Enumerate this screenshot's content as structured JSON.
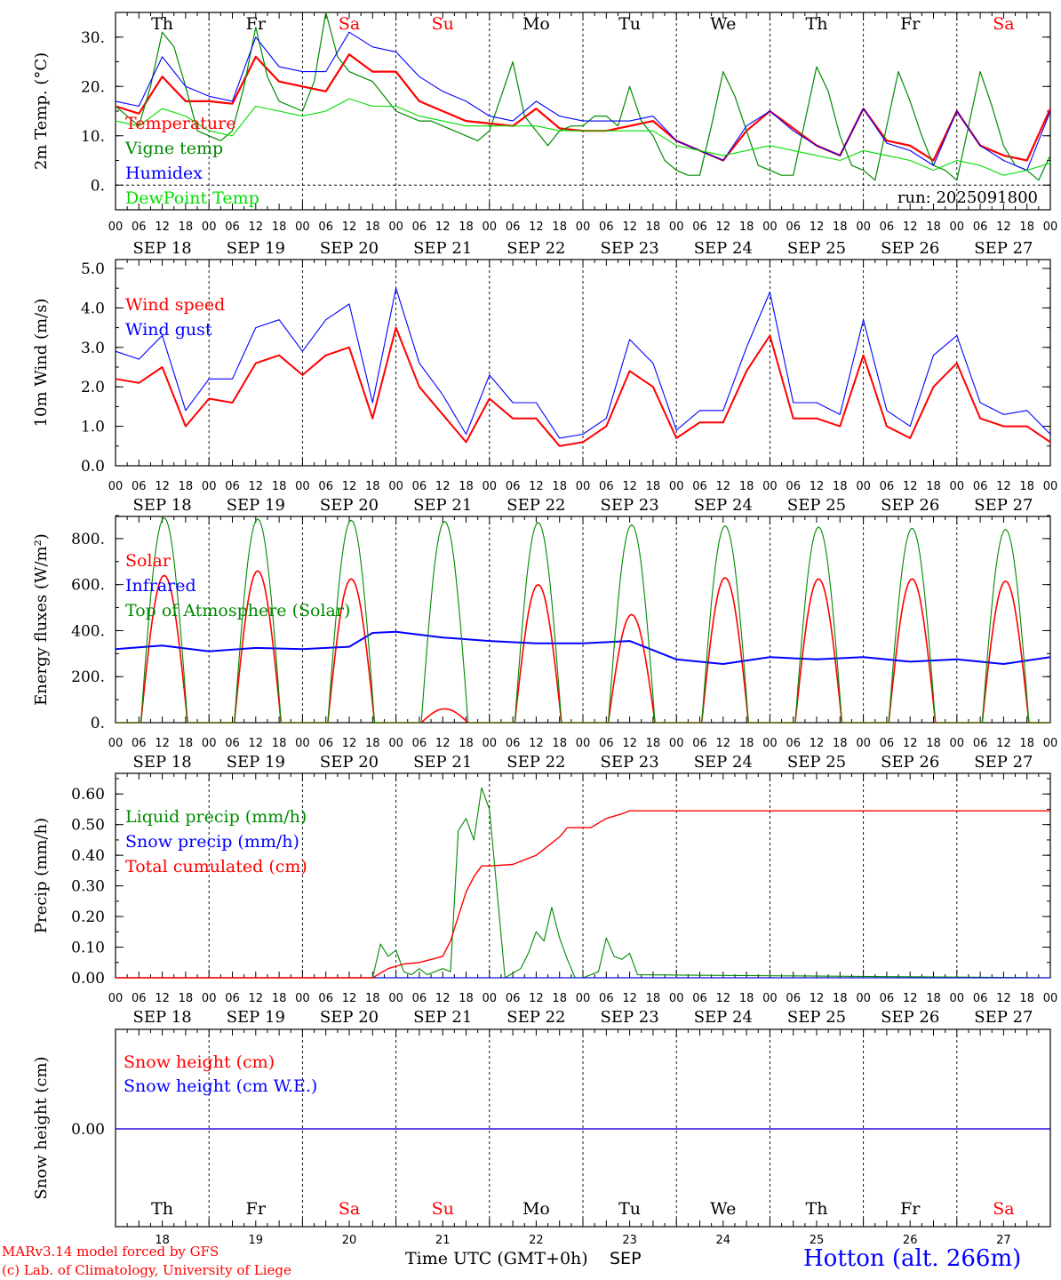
{
  "colors": {
    "red": "#ff0000",
    "green": "#008a00",
    "blue": "#0000ff",
    "lime": "#00dd00",
    "weekend": "#ff0000",
    "black": "#000000"
  },
  "days": [
    {
      "abbr": "Th",
      "date": "SEP 18",
      "num": "18",
      "weekend": false
    },
    {
      "abbr": "Fr",
      "date": "SEP 19",
      "num": "19",
      "weekend": false
    },
    {
      "abbr": "Sa",
      "date": "SEP 20",
      "num": "20",
      "weekend": true
    },
    {
      "abbr": "Su",
      "date": "SEP 21",
      "num": "21",
      "weekend": true
    },
    {
      "abbr": "Mo",
      "date": "SEP 22",
      "num": "22",
      "weekend": false
    },
    {
      "abbr": "Tu",
      "date": "SEP 23",
      "num": "23",
      "weekend": false
    },
    {
      "abbr": "We",
      "date": "SEP 24",
      "num": "24",
      "weekend": false
    },
    {
      "abbr": "Th",
      "date": "SEP 25",
      "num": "25",
      "weekend": false
    },
    {
      "abbr": "Fr",
      "date": "SEP 26",
      "num": "26",
      "weekend": false
    },
    {
      "abbr": "Sa",
      "date": "SEP 27",
      "num": "27",
      "weekend": true
    }
  ],
  "hour_labels": [
    "00",
    "06",
    "12",
    "18"
  ],
  "footer": {
    "model": "MARv3.14 model forced by GFS",
    "lab": "(c) Lab. of Climatology, University of Liege",
    "xlabel": "Time UTC (GMT+0h)",
    "month": "SEP",
    "location": "Hotton (alt. 266m)"
  },
  "chart_data": [
    {
      "type": "line",
      "id": "temperature",
      "ylabel": "2m Temp. (°C)",
      "ylim": [
        -5,
        35
      ],
      "yticks": [
        0,
        10,
        20,
        30
      ],
      "ytick_labels": [
        "0.",
        "10.",
        "20.",
        "30."
      ],
      "zero_line": 0,
      "annotation": "run: 2025091800",
      "x_unit": "hours since SEP 18 00 UTC",
      "series": [
        {
          "name": "Temperature",
          "color": "#ff0000",
          "width": 2.2,
          "x": [
            0,
            6,
            12,
            18,
            24,
            30,
            36,
            42,
            48,
            54,
            60,
            66,
            72,
            78,
            84,
            90,
            96,
            102,
            108,
            114,
            120,
            126,
            132,
            138,
            144,
            150,
            156,
            162,
            168,
            174,
            180,
            186,
            192,
            198,
            204,
            210,
            216,
            222,
            228,
            234,
            240
          ],
          "y": [
            16,
            14.5,
            22,
            17,
            17,
            16.5,
            26,
            21,
            20,
            19,
            26.5,
            23,
            23,
            17,
            15,
            13,
            12.5,
            12,
            15.5,
            11.5,
            11,
            11,
            12,
            13,
            9,
            7,
            5,
            11,
            15,
            11.5,
            8,
            6,
            15.5,
            9,
            8,
            5,
            15,
            8,
            6,
            5,
            15.5
          ]
        },
        {
          "name": "Vigne temp",
          "color": "#008a00",
          "width": 1.2,
          "x": [
            0,
            3,
            6,
            9,
            12,
            15,
            18,
            21,
            24,
            27,
            30,
            33,
            36,
            39,
            42,
            45,
            48,
            51,
            54,
            57,
            60,
            63,
            66,
            69,
            72,
            75,
            78,
            81,
            84,
            87,
            90,
            93,
            96,
            99,
            102,
            105,
            108,
            111,
            114,
            117,
            120,
            123,
            126,
            129,
            132,
            135,
            138,
            141,
            144,
            147,
            150,
            153,
            156,
            159,
            162,
            165,
            168,
            171,
            174,
            177,
            180,
            183,
            186,
            189,
            192,
            195,
            198,
            201,
            204,
            207,
            210,
            213,
            216,
            219,
            222,
            225,
            228,
            231,
            234,
            237,
            240
          ],
          "y": [
            16,
            14,
            12,
            20,
            31,
            28,
            20,
            11,
            10,
            9,
            11,
            20,
            32,
            22,
            17,
            16,
            15,
            21,
            35,
            26,
            23,
            22,
            21,
            18,
            15,
            14,
            13,
            13,
            12,
            11,
            10,
            9,
            11,
            18,
            25,
            14,
            11,
            8,
            11,
            12,
            12,
            14,
            14,
            12,
            20,
            13,
            10,
            5,
            3,
            2,
            2,
            12,
            23,
            18,
            11,
            4,
            3,
            2,
            2,
            13,
            24,
            19,
            10,
            4,
            3,
            1,
            12,
            23,
            17,
            10,
            4,
            3,
            1,
            12,
            23,
            16,
            8,
            4,
            3,
            1,
            6
          ]
        },
        {
          "name": "Humidex",
          "color": "#0000ff",
          "width": 1.1,
          "x": [
            0,
            6,
            12,
            18,
            24,
            30,
            36,
            42,
            48,
            54,
            60,
            66,
            72,
            78,
            84,
            90,
            96,
            102,
            108,
            114,
            120,
            126,
            132,
            138,
            144,
            150,
            156,
            162,
            168,
            174,
            180,
            186,
            192,
            198,
            204,
            210,
            216,
            222,
            228,
            234,
            240
          ],
          "y": [
            17,
            16,
            26,
            20,
            18,
            17,
            30,
            24,
            23,
            23,
            31,
            28,
            27,
            22,
            19,
            17,
            14,
            13,
            17,
            14,
            13,
            13,
            13,
            14,
            9,
            7,
            5,
            12,
            15,
            11,
            8,
            6,
            15.5,
            8.5,
            7,
            4,
            15,
            8,
            5,
            3,
            15
          ]
        },
        {
          "name": "DewPoint Temp",
          "color": "#00dd00",
          "width": 1.1,
          "x": [
            0,
            6,
            12,
            18,
            24,
            30,
            36,
            42,
            48,
            54,
            60,
            66,
            72,
            78,
            84,
            90,
            96,
            102,
            108,
            114,
            120,
            126,
            132,
            138,
            144,
            150,
            156,
            162,
            168,
            174,
            180,
            186,
            192,
            198,
            204,
            210,
            216,
            222,
            228,
            234,
            240
          ],
          "y": [
            13,
            12,
            15.5,
            14,
            11,
            10,
            16,
            15,
            14,
            15,
            17.5,
            16,
            16,
            14,
            13,
            12,
            12,
            12,
            12,
            11,
            11,
            11,
            11,
            11,
            8,
            7,
            6,
            7,
            8,
            7,
            6,
            5,
            7,
            6,
            5,
            3,
            5,
            4,
            2,
            3,
            4.5
          ]
        }
      ]
    },
    {
      "type": "line",
      "id": "wind",
      "ylabel": "10m Wind (m/s)",
      "ylim": [
        0,
        5
      ],
      "yticks": [
        0,
        1,
        2,
        3,
        4,
        5
      ],
      "ytick_labels": [
        "0.0",
        "1.0",
        "2.0",
        "3.0",
        "4.0",
        "5.0"
      ],
      "x_unit": "hours since SEP 18 00 UTC",
      "series": [
        {
          "name": "Wind speed",
          "color": "#ff0000",
          "width": 2.0,
          "x": [
            0,
            6,
            12,
            18,
            24,
            30,
            36,
            42,
            48,
            54,
            60,
            66,
            72,
            78,
            84,
            90,
            96,
            102,
            108,
            114,
            120,
            126,
            132,
            138,
            144,
            150,
            156,
            162,
            168,
            174,
            180,
            186,
            192,
            198,
            204,
            210,
            216,
            222,
            228,
            234,
            240
          ],
          "y": [
            2.2,
            2.1,
            2.5,
            1.0,
            1.7,
            1.6,
            2.6,
            2.8,
            2.3,
            2.8,
            3.0,
            1.2,
            3.5,
            2.0,
            1.3,
            0.6,
            1.7,
            1.2,
            1.2,
            0.5,
            0.6,
            1.0,
            2.4,
            2.0,
            0.7,
            1.1,
            1.1,
            2.4,
            3.3,
            1.2,
            1.2,
            1.0,
            2.8,
            1.0,
            0.7,
            2.0,
            2.6,
            1.2,
            1.0,
            1.0,
            0.6
          ]
        },
        {
          "name": "Wind gust",
          "color": "#0000ff",
          "width": 1.1,
          "x": [
            0,
            6,
            12,
            18,
            24,
            30,
            36,
            42,
            48,
            54,
            60,
            66,
            72,
            78,
            84,
            90,
            96,
            102,
            108,
            114,
            120,
            126,
            132,
            138,
            144,
            150,
            156,
            162,
            168,
            174,
            180,
            186,
            192,
            198,
            204,
            210,
            216,
            222,
            228,
            234,
            240
          ],
          "y": [
            2.9,
            2.7,
            3.3,
            1.4,
            2.2,
            2.2,
            3.5,
            3.7,
            2.9,
            3.7,
            4.1,
            1.6,
            4.5,
            2.6,
            1.8,
            0.8,
            2.3,
            1.6,
            1.6,
            0.7,
            0.8,
            1.2,
            3.2,
            2.6,
            0.9,
            1.4,
            1.4,
            3.0,
            4.4,
            1.6,
            1.6,
            1.3,
            3.7,
            1.4,
            1.0,
            2.8,
            3.3,
            1.6,
            1.3,
            1.4,
            0.8
          ]
        }
      ]
    },
    {
      "type": "line",
      "id": "energy",
      "ylabel": "Energy fluxes (W/m²)",
      "ylim": [
        0,
        900
      ],
      "yticks": [
        0,
        200,
        400,
        600,
        800
      ],
      "ytick_labels": [
        "0.",
        "200.",
        "400.",
        "600.",
        "800."
      ],
      "x_unit": "hours since SEP 18 00 UTC",
      "series": [
        {
          "name": "Solar",
          "color": "#ff0000",
          "width": 1.6,
          "kind": "daily_peaks",
          "peaks": [
            640,
            660,
            625,
            60,
            600,
            470,
            630,
            625,
            625,
            615
          ]
        },
        {
          "name": "Infrared",
          "color": "#0000ff",
          "width": 2.0,
          "x": [
            0,
            12,
            24,
            36,
            48,
            60,
            66,
            72,
            84,
            96,
            108,
            120,
            132,
            144,
            156,
            168,
            180,
            192,
            204,
            216,
            228,
            240
          ],
          "y": [
            320,
            335,
            310,
            325,
            320,
            330,
            390,
            395,
            370,
            355,
            345,
            345,
            355,
            275,
            255,
            285,
            275,
            285,
            265,
            275,
            255,
            285
          ]
        },
        {
          "name": "Top of Atmosphere (Solar)",
          "color": "#008a00",
          "width": 1.1,
          "kind": "daily_peaks",
          "peaks": [
            890,
            885,
            880,
            875,
            870,
            860,
            855,
            850,
            845,
            840
          ]
        }
      ]
    },
    {
      "type": "line",
      "id": "precip",
      "ylabel": "Precip (mm/h)",
      "ylim": [
        0,
        0.65
      ],
      "yticks": [
        0,
        0.1,
        0.2,
        0.3,
        0.4,
        0.5,
        0.6
      ],
      "ytick_labels": [
        "0.00",
        "0.10",
        "0.20",
        "0.30",
        "0.40",
        "0.50",
        "0.60"
      ],
      "x_unit": "hours since SEP 18 00 UTC",
      "series": [
        {
          "name": "Liquid precip (mm/h)",
          "color": "#008a00",
          "width": 1.1,
          "x": [
            0,
            66,
            68,
            70,
            72,
            74,
            76,
            78,
            80,
            82,
            84,
            86,
            88,
            90,
            92,
            94,
            96,
            100,
            104,
            106,
            108,
            110,
            112,
            114,
            116,
            118,
            120,
            122,
            124,
            126,
            128,
            130,
            132,
            134,
            240
          ],
          "y": [
            0,
            0,
            0.11,
            0.07,
            0.09,
            0.02,
            0.01,
            0.03,
            0.01,
            0.02,
            0.03,
            0.02,
            0.48,
            0.52,
            0.45,
            0.62,
            0.55,
            0,
            0.03,
            0.08,
            0.15,
            0.12,
            0.23,
            0.13,
            0.06,
            0,
            0,
            0.01,
            0.02,
            0.13,
            0.07,
            0.06,
            0.08,
            0.01,
            0
          ]
        },
        {
          "name": "Snow precip (mm/h)",
          "color": "#0000ff",
          "width": 1.1,
          "x": [
            0,
            240
          ],
          "y": [
            0,
            0
          ]
        },
        {
          "name": "Total cumulated (cm)",
          "color": "#ff0000",
          "width": 1.4,
          "x": [
            0,
            66,
            70,
            74,
            78,
            84,
            86,
            88,
            90,
            92,
            94,
            96,
            102,
            108,
            112,
            114,
            116,
            120,
            122,
            126,
            130,
            132,
            240
          ],
          "y": [
            0,
            0,
            0.03,
            0.045,
            0.05,
            0.07,
            0.12,
            0.2,
            0.28,
            0.33,
            0.365,
            0.365,
            0.37,
            0.4,
            0.44,
            0.46,
            0.49,
            0.49,
            0.49,
            0.52,
            0.535,
            0.545,
            0.545
          ]
        }
      ]
    },
    {
      "type": "line",
      "id": "snow",
      "ylabel": "Snow height (cm)",
      "ylim": [
        -1,
        1
      ],
      "yticks": [
        0
      ],
      "ytick_labels": [
        "0.00"
      ],
      "x_unit": "hours since SEP 18 00 UTC",
      "series": [
        {
          "name": "Snow height (cm)",
          "color": "#ff0000",
          "width": 1.2,
          "x": [
            0,
            240
          ],
          "y": [
            0,
            0
          ]
        },
        {
          "name": "Snow height (cm W.E.)",
          "color": "#0000ff",
          "width": 1.2,
          "x": [
            0,
            240
          ],
          "y": [
            0,
            0
          ]
        }
      ]
    }
  ]
}
